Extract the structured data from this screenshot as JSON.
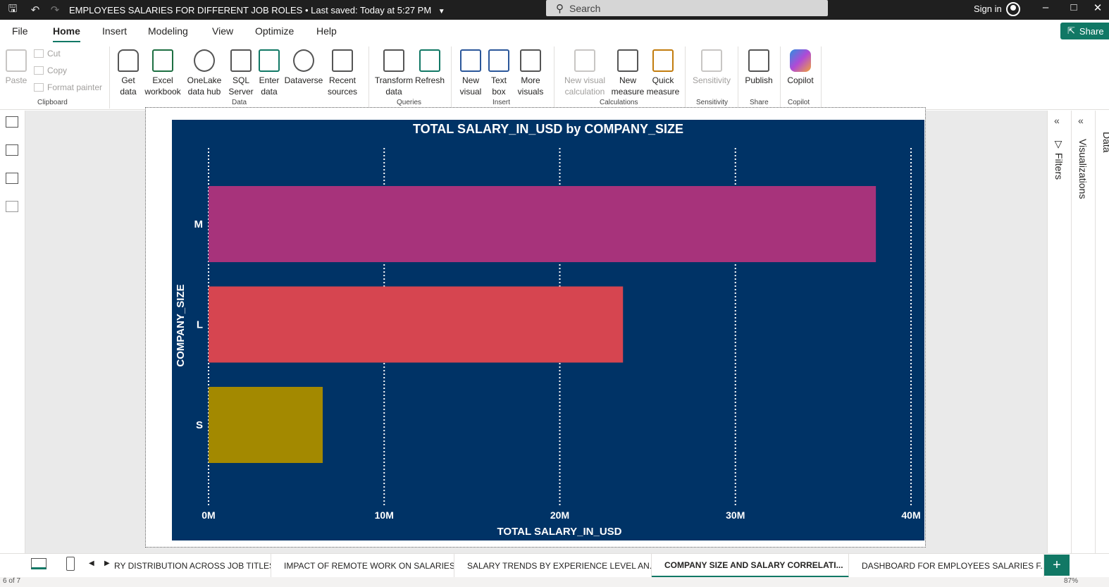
{
  "titlebar": {
    "doc_title": "EMPLOYEES SALARIES FOR DIFFERENT JOB ROLES",
    "saved": "Last saved: Today at 5:27 PM",
    "search_placeholder": "Search",
    "signin": "Sign in"
  },
  "menu": {
    "items": [
      "File",
      "Home",
      "Insert",
      "Modeling",
      "View",
      "Optimize",
      "Help"
    ],
    "active": "Home",
    "share": "Share"
  },
  "ribbon": {
    "clipboard": {
      "paste": "Paste",
      "cut": "Cut",
      "copy": "Copy",
      "format_painter": "Format painter",
      "label": "Clipboard"
    },
    "data": {
      "get": "Get",
      "get2": "data",
      "excel": "Excel",
      "excel2": "workbook",
      "onelake": "OneLake",
      "onelake2": "data hub",
      "sql": "SQL",
      "sql2": "Server",
      "enter": "Enter",
      "enter2": "data",
      "dataverse": "Dataverse",
      "recent": "Recent",
      "recent2": "sources",
      "label": "Data"
    },
    "queries": {
      "transform": "Transform",
      "transform2": "data",
      "refresh": "Refresh",
      "label": "Queries"
    },
    "insert": {
      "newvisual": "New",
      "newvisual2": "visual",
      "textbox": "Text",
      "textbox2": "box",
      "more": "More",
      "more2": "visuals",
      "label": "Insert"
    },
    "calculations": {
      "nvc": "New visual",
      "nvc2": "calculation",
      "nm": "New",
      "nm2": "measure",
      "qm": "Quick",
      "qm2": "measure",
      "label": "Calculations"
    },
    "sensitivity": {
      "btn": "Sensitivity",
      "label": "Sensitivity"
    },
    "share": {
      "publish": "Publish",
      "label": "Share"
    },
    "copilot": {
      "btn": "Copilot",
      "label": "Copilot"
    }
  },
  "panes": {
    "filters": "Filters",
    "visualizations": "Visualizations",
    "data": "Data"
  },
  "tabs": [
    "RY DISTRIBUTION ACROSS JOB TITLES",
    "IMPACT OF REMOTE WORK ON SALARIES",
    "SALARY TRENDS BY EXPERIENCE LEVEL AN...",
    "COMPANY SIZE AND SALARY CORRELATI...",
    "DASHBOARD FOR EMPLOYEES SALARIES F..."
  ],
  "active_tab": 3,
  "status": {
    "page": "6 of 7",
    "zoom": "87%"
  },
  "chart_data": {
    "type": "bar",
    "orientation": "horizontal",
    "title": "TOTAL SALARY_IN_USD by COMPANY_SIZE",
    "xlabel": "TOTAL SALARY_IN_USD",
    "ylabel": "COMPANY_SIZE",
    "categories": [
      "M",
      "L",
      "S"
    ],
    "values": [
      38000000,
      23600000,
      6500000
    ],
    "colors": [
      "#A7337B",
      "#D64550",
      "#A38900"
    ],
    "xlim": [
      0,
      40000000
    ],
    "xticks": [
      0,
      10000000,
      20000000,
      30000000,
      40000000
    ],
    "xtick_labels": [
      "0M",
      "10M",
      "20M",
      "30M",
      "40M"
    ],
    "background": "#003366",
    "grid": true
  }
}
